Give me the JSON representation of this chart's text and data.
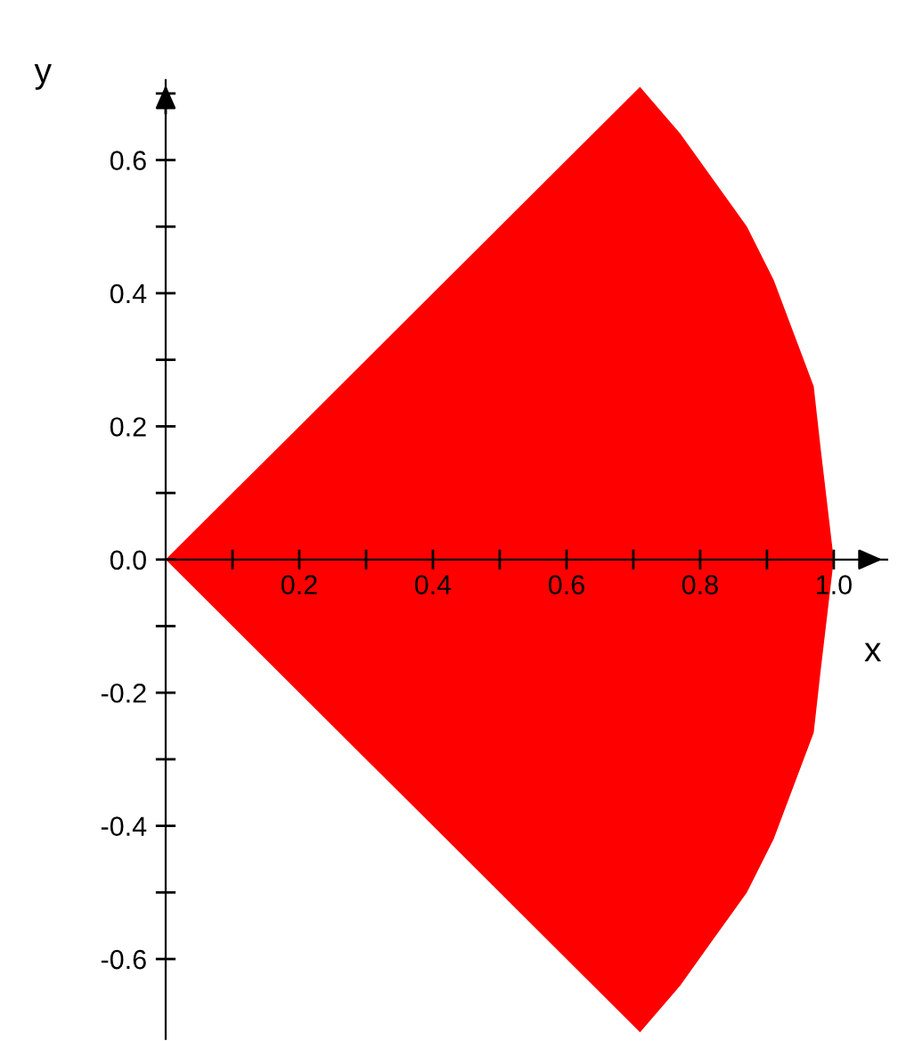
{
  "chart_data": {
    "type": "area",
    "xlabel": "x",
    "ylabel": "y",
    "series": [
      {
        "color": "#ff0000",
        "x": [
          0,
          0.1,
          0.2,
          0.3,
          0.4,
          0.5,
          0.6,
          0.71,
          0.77,
          0.82,
          0.87,
          0.91,
          0.94,
          0.97,
          0.98,
          1.0
        ],
        "values": [
          0,
          0.1,
          0.2,
          0.3,
          0.4,
          0.5,
          0.6,
          0.71,
          0.64,
          0.57,
          0.5,
          0.42,
          0.34,
          0.26,
          0.17,
          0
        ]
      },
      {
        "color": "#ff0000",
        "x": [
          0,
          0.1,
          0.2,
          0.3,
          0.4,
          0.5,
          0.6,
          0.71,
          0.77,
          0.82,
          0.87,
          0.91,
          0.94,
          0.97,
          0.98,
          1.0
        ],
        "values": [
          0,
          -0.1,
          -0.2,
          -0.3,
          -0.4,
          -0.5,
          -0.6,
          -0.71,
          -0.64,
          -0.57,
          -0.5,
          -0.42,
          -0.34,
          -0.26,
          -0.17,
          0
        ]
      }
    ],
    "xlim": [
      0,
      1.08
    ],
    "ylim": [
      -0.72,
      0.72
    ],
    "xticks": [
      {
        "value": 0.1,
        "label": null
      },
      0.2,
      {
        "value": 0.3,
        "label": null
      },
      0.4,
      {
        "value": 0.5,
        "label": null
      },
      0.6,
      {
        "value": 0.7,
        "label": null
      },
      0.8,
      {
        "value": 0.9,
        "label": null
      },
      {
        "value": 1,
        "label": "1.0"
      }
    ],
    "yticks": [
      -0.6,
      {
        "value": -0.5,
        "label": null
      },
      -0.4,
      {
        "value": -0.3,
        "label": null
      },
      -0.2,
      {
        "value": -0.1,
        "label": null
      },
      {
        "value": 0,
        "label": "0.0"
      },
      {
        "value": 0.1,
        "label": null
      },
      0.2,
      {
        "value": 0.3,
        "label": null
      },
      0.4,
      {
        "value": 0.5,
        "label": null
      },
      0.6,
      {
        "value": 0.7,
        "label": null
      }
    ],
    "grid": false,
    "legend": false
  }
}
